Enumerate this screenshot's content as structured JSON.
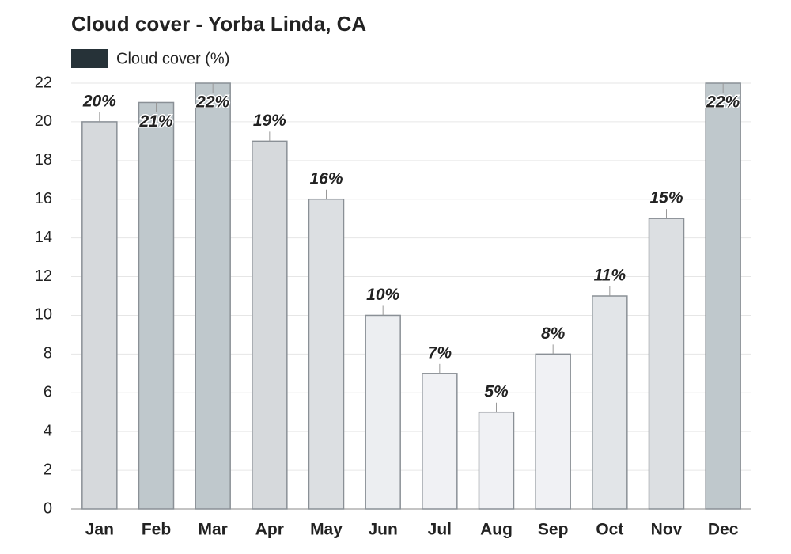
{
  "chart_data": {
    "type": "bar",
    "title": "Cloud cover - Yorba Linda, CA",
    "categories": [
      "Jan",
      "Feb",
      "Mar",
      "Apr",
      "May",
      "Jun",
      "Jul",
      "Aug",
      "Sep",
      "Oct",
      "Nov",
      "Dec"
    ],
    "series": [
      {
        "name": "Cloud cover (%)",
        "color": "#263238",
        "values": [
          20,
          21,
          22,
          19,
          16,
          10,
          7,
          5,
          8,
          11,
          15,
          22
        ],
        "value_labels": [
          "20%",
          "21%",
          "22%",
          "19%",
          "16%",
          "10%",
          "7%",
          "5%",
          "8%",
          "11%",
          "15%",
          "22%"
        ],
        "bar_colors": [
          "#d6d9dc",
          "#bfc8cc",
          "#bfc8cc",
          "#d6d9dc",
          "#dcdfe2",
          "#eceef1",
          "#f0f1f4",
          "#f0f1f4",
          "#f0f1f4",
          "#e2e5e8",
          "#dcdfe2",
          "#bfc8cc"
        ]
      }
    ],
    "ylim": [
      0,
      22
    ],
    "yticks": [
      0,
      2,
      4,
      6,
      8,
      10,
      12,
      14,
      16,
      18,
      20,
      22
    ],
    "grid": true
  }
}
